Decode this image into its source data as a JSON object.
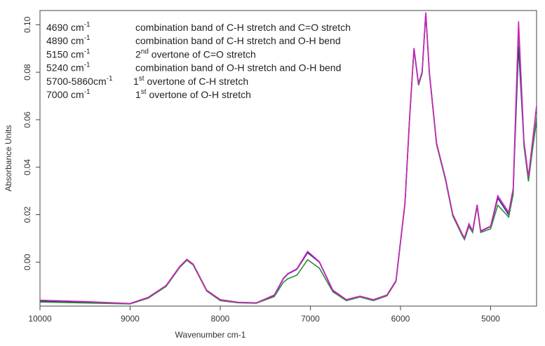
{
  "chart_data": {
    "type": "line",
    "xlabel": "Wavenumber cm-1",
    "ylabel": "Absorbance Units",
    "xlim": [
      10000,
      4490
    ],
    "ylim": [
      -0.0185,
      0.106
    ],
    "xticks": [
      10000,
      9000,
      8000,
      7000,
      6000,
      5000
    ],
    "yticks": [
      {
        "value": 0.0,
        "label": "0.00"
      },
      0.02,
      0.04,
      0.06,
      0.08,
      {
        "value": 0.1,
        "label": "0.10"
      }
    ],
    "x": [
      10000,
      9500,
      9000,
      8800,
      8600,
      8450,
      8370,
      8300,
      8150,
      8000,
      7800,
      7600,
      7400,
      7300,
      7250,
      7150,
      7030,
      6900,
      6750,
      6600,
      6450,
      6300,
      6150,
      6050,
      5950,
      5900,
      5850,
      5800,
      5760,
      5720,
      5680,
      5600,
      5500,
      5420,
      5320,
      5290,
      5240,
      5200,
      5150,
      5110,
      5000,
      4920,
      4800,
      4750,
      4690,
      4630,
      4580,
      4490
    ],
    "series": [
      {
        "color": "#1f2a7a",
        "values": [
          -0.0165,
          -0.017,
          -0.0175,
          -0.015,
          -0.01,
          -0.002,
          0.001,
          -0.001,
          -0.012,
          -0.016,
          -0.017,
          -0.0172,
          -0.014,
          -0.007,
          -0.005,
          -0.003,
          0.004,
          0.0,
          -0.012,
          -0.016,
          -0.0145,
          -0.016,
          -0.014,
          -0.008,
          0.025,
          0.06,
          0.09,
          0.075,
          0.08,
          0.105,
          0.08,
          0.05,
          0.035,
          0.02,
          0.012,
          0.01,
          0.016,
          0.013,
          0.024,
          0.013,
          0.015,
          0.027,
          0.02,
          0.03,
          0.091,
          0.05,
          0.035,
          0.06
        ]
      },
      {
        "color": "#2e8b3a",
        "values": [
          -0.0168,
          -0.0172,
          -0.0176,
          -0.0152,
          -0.0102,
          -0.0022,
          0.0008,
          -0.0012,
          -0.0122,
          -0.0162,
          -0.0171,
          -0.0173,
          -0.0145,
          -0.0085,
          -0.007,
          -0.0055,
          0.001,
          -0.0025,
          -0.0125,
          -0.0162,
          -0.0147,
          -0.0162,
          -0.0142,
          -0.0082,
          0.0245,
          0.0595,
          0.0895,
          0.0745,
          0.0795,
          0.1045,
          0.0795,
          0.0495,
          0.0345,
          0.0195,
          0.0115,
          0.0095,
          0.015,
          0.0125,
          0.0235,
          0.0125,
          0.014,
          0.024,
          0.019,
          0.0285,
          0.098,
          0.049,
          0.034,
          0.061
        ]
      },
      {
        "color": "#d020c0",
        "values": [
          -0.016,
          -0.0166,
          -0.0174,
          -0.0148,
          -0.0098,
          -0.0018,
          0.0012,
          -0.0008,
          -0.0118,
          -0.0158,
          -0.0169,
          -0.0171,
          -0.0138,
          -0.0068,
          -0.0048,
          -0.0028,
          0.0045,
          0.0002,
          -0.0118,
          -0.0158,
          -0.0143,
          -0.0158,
          -0.0138,
          -0.0078,
          0.0252,
          0.0602,
          0.0902,
          0.0752,
          0.0802,
          0.1052,
          0.0802,
          0.0502,
          0.0352,
          0.0202,
          0.0122,
          0.0102,
          0.0162,
          0.0132,
          0.0242,
          0.0132,
          0.0152,
          0.028,
          0.021,
          0.031,
          0.1015,
          0.051,
          0.036,
          0.066
        ]
      }
    ],
    "annotations": [
      {
        "wavenumber": [
          "4690 cm",
          "-1"
        ],
        "assignment": [
          "combination band of C-H stretch and C=O stretch"
        ]
      },
      {
        "wavenumber": [
          "4890 cm",
          "-1"
        ],
        "assignment": [
          "combination band of C-H stretch and O-H bend"
        ]
      },
      {
        "wavenumber": [
          "5150 cm",
          "-1"
        ],
        "assignment": [
          "2",
          "nd",
          " overtone of C=O stretch"
        ]
      },
      {
        "wavenumber": [
          "5240 cm",
          "-1"
        ],
        "assignment": [
          "combination band of O-H stretch and O-H bend"
        ]
      },
      {
        "wavenumber": [
          "5700-5860cm",
          "-1"
        ],
        "assignment": [
          "1",
          "st",
          " overtone of C-H stretch"
        ]
      },
      {
        "wavenumber": [
          "7000 cm",
          "-1"
        ],
        "assignment": [
          "1",
          "st",
          " overtone of O-H stretch"
        ]
      }
    ]
  }
}
